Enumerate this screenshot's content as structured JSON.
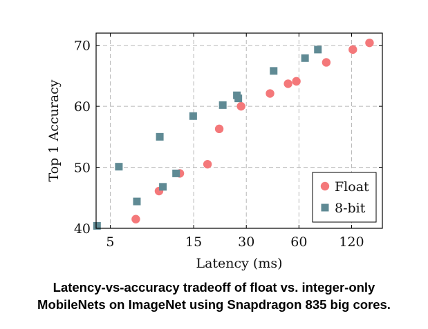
{
  "caption": {
    "line1": "Latency-vs-accuracy tradeoff of float vs. integer-only",
    "line2": "MobileNets on ImageNet using Snapdragon 835 big cores."
  },
  "chart_data": {
    "type": "scatter",
    "title": "",
    "xlabel": "Latency (ms)",
    "ylabel": "Top 1 Accuracy",
    "xscale": "log",
    "xlim": [
      4.15,
      180
    ],
    "ylim": [
      40,
      72
    ],
    "xticks": [
      5,
      15,
      30,
      60,
      120
    ],
    "xtick_labels": [
      "5",
      "15",
      "30",
      "60",
      "120"
    ],
    "yticks": [
      40,
      50,
      60,
      70
    ],
    "ytick_labels": [
      "40",
      "50",
      "60",
      "70"
    ],
    "grid": true,
    "legend_position": "bottom-right",
    "series": [
      {
        "name": "Float",
        "marker": "circle",
        "color": "#f4787a",
        "points": [
          [
            7.0,
            41.5
          ],
          [
            9.5,
            46.1
          ],
          [
            12.5,
            49.0
          ],
          [
            18.0,
            50.5
          ],
          [
            21.0,
            56.3
          ],
          [
            28.0,
            60.0
          ],
          [
            41.0,
            62.1
          ],
          [
            52.0,
            63.7
          ],
          [
            58.0,
            64.1
          ],
          [
            86.0,
            67.2
          ],
          [
            122.0,
            69.3
          ],
          [
            152.0,
            70.4
          ]
        ]
      },
      {
        "name": "8-bit",
        "marker": "square",
        "color": "#5f8a94",
        "points": [
          [
            4.2,
            40.4
          ],
          [
            5.6,
            50.1
          ],
          [
            7.1,
            44.4
          ],
          [
            9.6,
            55.0
          ],
          [
            10.0,
            46.8
          ],
          [
            11.9,
            49.0
          ],
          [
            14.9,
            58.4
          ],
          [
            22.0,
            60.2
          ],
          [
            26.5,
            61.8
          ],
          [
            27.0,
            61.3
          ],
          [
            43.0,
            65.8
          ],
          [
            65.0,
            67.9
          ],
          [
            77.0,
            69.3
          ]
        ]
      }
    ]
  }
}
